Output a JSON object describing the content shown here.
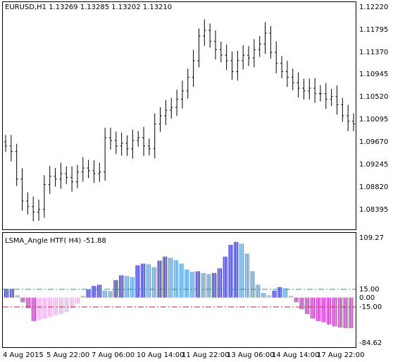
{
  "main_window": {
    "symbol_info": "EURUSD,H1  1.13269 1.13285 1.13202 1.13210",
    "price_axis": [
      "1.12220",
      "1.11795",
      "1.11370",
      "1.10945",
      "1.10520",
      "1.10095",
      "1.09670",
      "1.09245",
      "1.08820",
      "1.08395"
    ]
  },
  "indicator_window": {
    "title": "LSMA_Angle HTF( H4) -51.88",
    "value_axis": [
      "109.27",
      "15.00",
      "0.00",
      "-15.00",
      "-84.62"
    ]
  },
  "time_axis": [
    "4 Aug 2015",
    "5 Aug 22:00",
    "7 Aug 06:00",
    "10 Aug 14:00",
    "11 Aug 22:00",
    "13 Aug 06:00",
    "14 Aug 14:00",
    "17 Aug 22:00"
  ],
  "colors": {
    "background": "#ffffff",
    "grid_border": "#000000",
    "bars": "#000000",
    "histogram_gray": "#a0a0a0",
    "histogram_light_blue": "#4a9be0",
    "histogram_dark_blue": "#3232c8",
    "histogram_light_magenta": "#eeaaee",
    "histogram_magenta": "#cc22cc",
    "upper_level_line": "#3c8c82",
    "lower_level_line": "#d22828"
  },
  "chart_data": [
    {
      "type": "ohlc",
      "symbol": "EURUSD",
      "timeframe": "H1",
      "last_bar": {
        "open": 1.13269,
        "high": 1.13285,
        "low": 1.13202,
        "close": 1.1321
      },
      "ylim": [
        1.0825,
        1.1235
      ],
      "closes": [
        1.0975,
        1.0965,
        1.0915,
        1.0875,
        1.0865,
        1.0855,
        1.086,
        1.0905,
        1.092,
        1.0915,
        1.0925,
        1.0918,
        1.091,
        1.0928,
        1.0935,
        1.093,
        1.0925,
        1.0928,
        1.099,
        1.0985,
        1.0975,
        1.098,
        1.097,
        1.0985,
        1.099,
        1.0975,
        1.097,
        1.1015,
        1.103,
        1.104,
        1.1045,
        1.106,
        1.1075,
        1.11,
        1.113,
        1.1175,
        1.1185,
        1.1165,
        1.115,
        1.114,
        1.113,
        1.111,
        1.113,
        1.114,
        1.1135,
        1.115,
        1.116,
        1.118,
        1.1145,
        1.1125,
        1.111,
        1.11,
        1.109,
        1.108,
        1.1075,
        1.108,
        1.107,
        1.107,
        1.106,
        1.1065,
        1.105,
        1.103,
        1.102,
        1.1015
      ]
    },
    {
      "type": "histogram",
      "name": "LSMA_Angle HTF( H4)",
      "current_value": -51.88,
      "ylim": [
        -84.62,
        109.27
      ],
      "levels": [
        15.0,
        0.0,
        -15.0
      ],
      "values": [
        15,
        15,
        4,
        -8,
        -18,
        -40,
        -38,
        -36,
        -33,
        -30,
        -28,
        -25,
        -18,
        -10,
        3,
        14,
        20,
        22,
        12,
        11,
        30,
        38,
        37,
        35,
        55,
        58,
        57,
        52,
        63,
        70,
        68,
        64,
        58,
        48,
        44,
        45,
        42,
        40,
        42,
        50,
        70,
        90,
        95,
        92,
        75,
        45,
        22,
        8,
        4,
        12,
        18,
        16,
        3,
        -8,
        -20,
        -28,
        -36,
        -40,
        -42,
        -46,
        -49,
        -51,
        -52,
        -52
      ]
    }
  ]
}
